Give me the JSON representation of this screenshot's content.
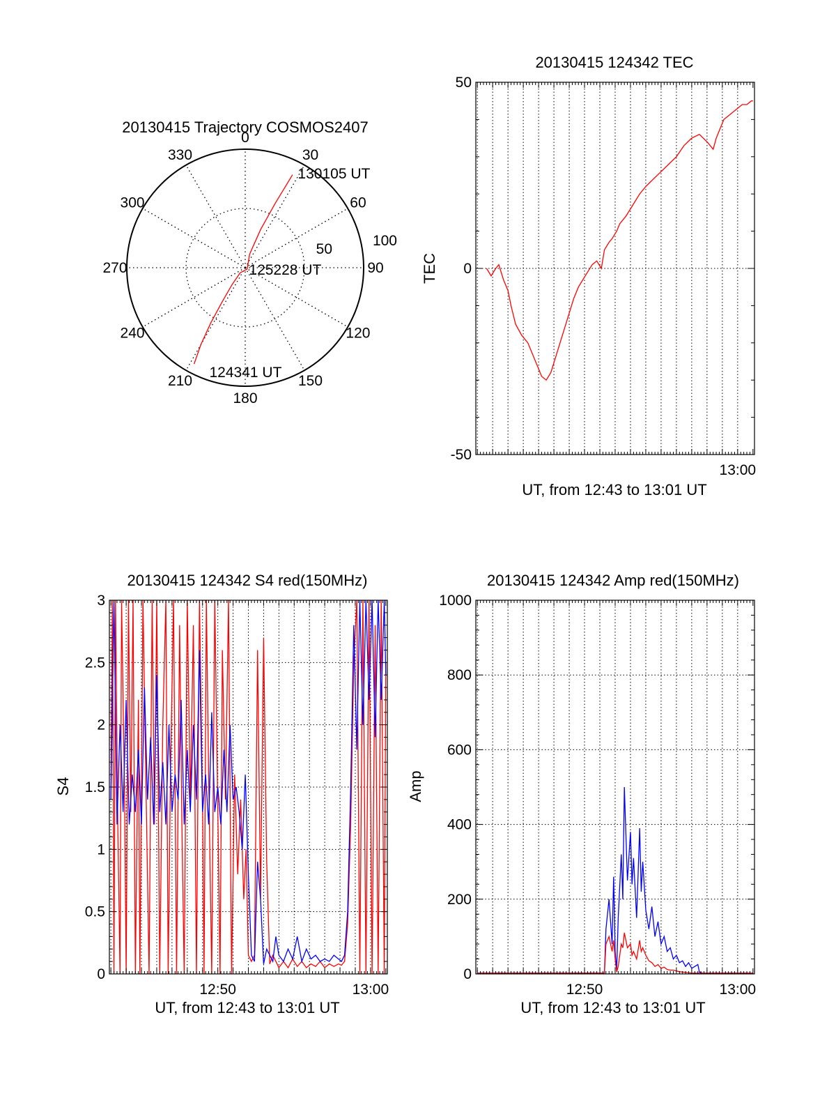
{
  "colors": {
    "red": "#ff0000",
    "blue": "#0000ff",
    "axis": "#000000",
    "grid": "#000000"
  },
  "chart_data": [
    {
      "id": "polar",
      "type": "scatter",
      "subtype": "polar-trajectory",
      "title": "20130415 Trajectory COSMOS2407",
      "angle_labels": [
        "0",
        "30",
        "60",
        "90",
        "120",
        "150",
        "180",
        "210",
        "240",
        "270",
        "300",
        "330"
      ],
      "radius_labels": [
        "50",
        "100"
      ],
      "radial_range": [
        0,
        100
      ],
      "zero_direction": "top",
      "rotation": "clockwise",
      "trajectory": [
        {
          "az": 208,
          "r": 92
        },
        {
          "az": 210,
          "r": 75
        },
        {
          "az": 212,
          "r": 55
        },
        {
          "az": 214,
          "r": 35
        },
        {
          "az": 218,
          "r": 18
        },
        {
          "az": 225,
          "r": 6
        },
        {
          "az": 125,
          "r": 2
        },
        {
          "az": 18,
          "r": 12
        },
        {
          "az": 22,
          "r": 35
        },
        {
          "az": 25,
          "r": 60
        },
        {
          "az": 27,
          "r": 88
        }
      ],
      "annotations": [
        {
          "text": "130105 UT",
          "az": 28,
          "r": 92
        },
        {
          "text": "125228 UT",
          "az": 90,
          "r": 2
        },
        {
          "text": "124341 UT",
          "az": 200,
          "r": 92
        }
      ],
      "grid": true
    },
    {
      "id": "tec",
      "type": "line",
      "title": "20130415 124342 TEC",
      "xlabel": "UT, from 12:43 to 13:01 UT",
      "ylabel": "TEC",
      "xlim": [
        762.9,
        781.1
      ],
      "ylim": [
        -50,
        50
      ],
      "yticks": [
        {
          "v": -50,
          "label": "-50"
        },
        {
          "v": 0,
          "label": "0"
        },
        {
          "v": 50,
          "label": "50"
        }
      ],
      "xticks": [
        {
          "v": 780,
          "label": "13:00"
        }
      ],
      "grid_x": [
        763,
        764,
        765,
        766,
        767,
        768,
        769,
        770,
        771,
        772,
        773,
        774,
        775,
        776,
        777,
        778,
        779,
        780
      ],
      "series": [
        {
          "color": "#ff0000",
          "x": [
            763.6,
            763.9,
            764.2,
            764.4,
            764.7,
            765.0,
            765.2,
            765.5,
            765.9,
            766.3,
            766.6,
            766.9,
            767.2,
            767.5,
            767.8,
            768.1,
            768.4,
            768.7,
            769.0,
            769.3,
            769.6,
            769.9,
            770.2,
            770.5,
            770.8,
            771.1,
            771.3,
            771.6,
            771.8,
            772.1,
            772.3,
            772.7,
            773.0,
            773.3,
            773.6,
            774.0,
            774.5,
            775.0,
            775.5,
            776.0,
            776.5,
            777.0,
            777.5,
            778.0,
            778.4,
            778.6,
            778.8,
            779.1,
            779.4,
            779.7,
            780.0,
            780.3,
            780.6,
            780.9,
            781.0
          ],
          "y": [
            0,
            -2,
            0,
            1,
            -3,
            -6,
            -10,
            -15,
            -18,
            -20,
            -23,
            -26,
            -29,
            -30,
            -28,
            -24,
            -20,
            -16,
            -12,
            -8,
            -5,
            -3,
            -1,
            1,
            2,
            0,
            5,
            7,
            8,
            10,
            12,
            14,
            16,
            18,
            20,
            22,
            24,
            26,
            28,
            30,
            33,
            35,
            36,
            34,
            32,
            35,
            37,
            40,
            41,
            42,
            43,
            44,
            44,
            45,
            45
          ]
        }
      ],
      "grid": true
    },
    {
      "id": "s4",
      "type": "line",
      "title": "20130415 124342 S4 red(150MHz)",
      "xlabel": "UT, from 12:43 to 13:01 UT",
      "ylabel": "S4",
      "xlim": [
        762.9,
        781.1
      ],
      "ylim": [
        0,
        3
      ],
      "yticks": [
        {
          "v": 0,
          "label": "0"
        },
        {
          "v": 0.5,
          "label": "0.5"
        },
        {
          "v": 1,
          "label": "1"
        },
        {
          "v": 1.5,
          "label": "1.5"
        },
        {
          "v": 2,
          "label": "2"
        },
        {
          "v": 2.5,
          "label": "2.5"
        },
        {
          "v": 3,
          "label": "3"
        }
      ],
      "xticks": [
        {
          "v": 770,
          "label": "12:50"
        },
        {
          "v": 780,
          "label": "13:00"
        }
      ],
      "grid_x": [
        763,
        764,
        765,
        766,
        767,
        768,
        769,
        770,
        771,
        772,
        773,
        774,
        775,
        776,
        777,
        778,
        779,
        780
      ],
      "series": [
        {
          "color": "#ff0000",
          "x": [
            763.0,
            763.1,
            763.2,
            763.3,
            763.45,
            763.6,
            763.7,
            763.9,
            764.0,
            764.15,
            764.3,
            764.45,
            764.6,
            764.8,
            764.9,
            765.1,
            765.3,
            765.5,
            765.7,
            765.85,
            766.0,
            766.2,
            766.4,
            766.6,
            766.75,
            766.9,
            767.1,
            767.3,
            767.5,
            767.65,
            767.8,
            768.0,
            768.2,
            768.4,
            768.6,
            768.8,
            769.0,
            769.1,
            769.25,
            769.4,
            769.6,
            769.8,
            770.0,
            770.15,
            770.3,
            770.5,
            770.7,
            770.9,
            771.1,
            771.3,
            771.5,
            771.7,
            771.85,
            772.0,
            772.2,
            772.4,
            772.6,
            772.8,
            773.0,
            773.2,
            773.4,
            773.6,
            773.8,
            774.0,
            774.3,
            774.6,
            774.9,
            775.2,
            775.5,
            775.8,
            776.1,
            776.4,
            776.7,
            777.0,
            777.3,
            777.6,
            777.9,
            778.1,
            778.3,
            778.5,
            778.7,
            778.9,
            779.1,
            779.3,
            779.5,
            779.7,
            779.9,
            780.1,
            780.3,
            780.5,
            780.7,
            780.9,
            781.0
          ],
          "y": [
            1.4,
            3,
            0,
            3,
            1.2,
            0,
            3,
            1.4,
            0,
            3,
            1.3,
            3,
            0,
            2.2,
            0,
            3,
            1.5,
            0,
            3,
            1.2,
            3,
            0,
            2.0,
            3,
            0,
            1.6,
            3,
            0,
            2.8,
            1.2,
            0,
            3,
            1.4,
            2.8,
            0,
            3,
            1.4,
            0,
            3,
            1.6,
            0,
            3,
            1.3,
            0,
            2.6,
            1.4,
            3,
            0,
            1.6,
            0.8,
            1.4,
            0.6,
            1.0,
            0.15,
            0.1,
            0.15,
            2.6,
            0.6,
            2.7,
            0.9,
            0.08,
            0.15,
            0.1,
            0.05,
            0.1,
            0.05,
            0.12,
            0.06,
            0.1,
            0.05,
            0.08,
            0.06,
            0.1,
            0.05,
            0.08,
            0.06,
            0.08,
            0.07,
            0.1,
            0.4,
            1.2,
            2.5,
            3,
            0,
            3,
            0,
            3,
            0,
            2.8,
            0,
            3,
            0,
            2.5
          ]
        },
        {
          "color": "#0000ff",
          "x": [
            763.0,
            763.2,
            763.4,
            763.6,
            763.8,
            764.0,
            764.2,
            764.4,
            764.6,
            764.8,
            765.0,
            765.2,
            765.4,
            765.6,
            765.8,
            766.0,
            766.2,
            766.4,
            766.6,
            766.8,
            767.0,
            767.2,
            767.4,
            767.6,
            767.8,
            768.0,
            768.2,
            768.4,
            768.6,
            768.8,
            769.0,
            769.2,
            769.4,
            769.6,
            769.8,
            770.0,
            770.2,
            770.4,
            770.6,
            770.8,
            771.0,
            771.2,
            771.4,
            771.6,
            771.8,
            772.0,
            772.2,
            772.4,
            772.6,
            772.8,
            773.0,
            773.2,
            773.4,
            773.6,
            773.8,
            774.0,
            774.3,
            774.6,
            774.9,
            775.2,
            775.5,
            775.8,
            776.1,
            776.4,
            776.7,
            777.0,
            777.3,
            777.6,
            777.9,
            778.1,
            778.3,
            778.5,
            778.7,
            778.9,
            779.1,
            779.3,
            779.5,
            779.7,
            779.9,
            780.1,
            780.3,
            780.5,
            780.7,
            780.9,
            781.0
          ],
          "y": [
            1.4,
            3,
            1.2,
            2.0,
            1.3,
            2.2,
            1.2,
            1.6,
            1.3,
            1.8,
            1.2,
            2.3,
            1.4,
            1.9,
            1.2,
            2.4,
            1.3,
            1.7,
            1.2,
            2.0,
            1.3,
            1.6,
            1.4,
            2.2,
            1.2,
            1.8,
            1.3,
            2.0,
            1.4,
            2.6,
            1.3,
            1.6,
            1.2,
            2.1,
            1.3,
            1.5,
            1.2,
            1.8,
            1.3,
            2.0,
            1.4,
            1.5,
            1.3,
            1.0,
            1.6,
            0.8,
            0.15,
            0.1,
            0.9,
            0.6,
            0.08,
            0.2,
            0.15,
            0.1,
            0.3,
            0.15,
            0.1,
            0.2,
            0.12,
            0.3,
            0.1,
            0.2,
            0.12,
            0.15,
            0.1,
            0.12,
            0.1,
            0.15,
            0.12,
            0.1,
            0.15,
            0.5,
            1.5,
            2.8,
            1.8,
            3,
            2.0,
            3,
            2.2,
            3,
            1.9,
            3,
            2.2,
            3,
            2.4
          ]
        }
      ],
      "grid": true
    },
    {
      "id": "amp",
      "type": "line",
      "title": "20130415 124342 Amp red(150MHz)",
      "xlabel": "UT, from 12:43 to 13:01 UT",
      "ylabel": "Amp",
      "xlim": [
        762.9,
        781.1
      ],
      "ylim": [
        0,
        1000
      ],
      "yticks": [
        {
          "v": 0,
          "label": "0"
        },
        {
          "v": 200,
          "label": "200"
        },
        {
          "v": 400,
          "label": "400"
        },
        {
          "v": 600,
          "label": "600"
        },
        {
          "v": 800,
          "label": "800"
        },
        {
          "v": 1000,
          "label": "1000"
        }
      ],
      "xticks": [
        {
          "v": 770,
          "label": "12:50"
        },
        {
          "v": 780,
          "label": "13:00"
        }
      ],
      "grid_x": [
        763,
        764,
        765,
        766,
        767,
        768,
        769,
        770,
        771,
        772,
        773,
        774,
        775,
        776,
        777,
        778,
        779,
        780
      ],
      "series": [
        {
          "color": "#0000ff",
          "x": [
            763.0,
            766.0,
            769.0,
            771.3,
            771.4,
            771.6,
            771.8,
            771.9,
            772.0,
            772.1,
            772.2,
            772.4,
            772.5,
            772.6,
            772.8,
            773.0,
            773.1,
            773.2,
            773.4,
            773.6,
            773.7,
            773.8,
            774.0,
            774.2,
            774.4,
            774.6,
            774.8,
            775.0,
            775.2,
            775.4,
            775.6,
            775.8,
            776.0,
            776.2,
            776.4,
            776.6,
            776.8,
            777.0,
            777.2,
            777.4,
            777.5,
            777.7,
            778.0,
            779.0,
            780.0,
            781.0
          ],
          "y": [
            2,
            2,
            2,
            2,
            120,
            200,
            80,
            260,
            60,
            10,
            150,
            320,
            200,
            500,
            250,
            380,
            240,
            310,
            150,
            390,
            220,
            300,
            170,
            120,
            180,
            100,
            140,
            80,
            100,
            60,
            70,
            40,
            50,
            30,
            35,
            20,
            30,
            15,
            20,
            25,
            5,
            2,
            2,
            2,
            2,
            2
          ]
        },
        {
          "color": "#ff0000",
          "x": [
            763.0,
            766.0,
            769.0,
            771.3,
            771.4,
            771.6,
            771.8,
            771.9,
            772.0,
            772.1,
            772.2,
            772.4,
            772.5,
            772.6,
            772.8,
            773.0,
            773.1,
            773.2,
            773.4,
            773.6,
            773.7,
            773.8,
            774.0,
            774.2,
            774.4,
            774.6,
            774.8,
            775.0,
            775.2,
            775.4,
            775.6,
            775.8,
            776.0,
            776.2,
            776.4,
            776.6,
            776.8,
            777.0,
            777.2,
            777.4,
            777.5,
            777.7,
            778.0,
            779.0,
            780.0,
            781.0
          ],
          "y": [
            2,
            2,
            2,
            2,
            80,
            100,
            60,
            90,
            40,
            5,
            20,
            80,
            70,
            110,
            70,
            80,
            50,
            60,
            40,
            90,
            60,
            70,
            50,
            35,
            30,
            20,
            25,
            15,
            18,
            12,
            10,
            10,
            8,
            6,
            5,
            4,
            3,
            2,
            2,
            2,
            2,
            2,
            2,
            2,
            2,
            2
          ]
        }
      ],
      "grid": true
    }
  ]
}
